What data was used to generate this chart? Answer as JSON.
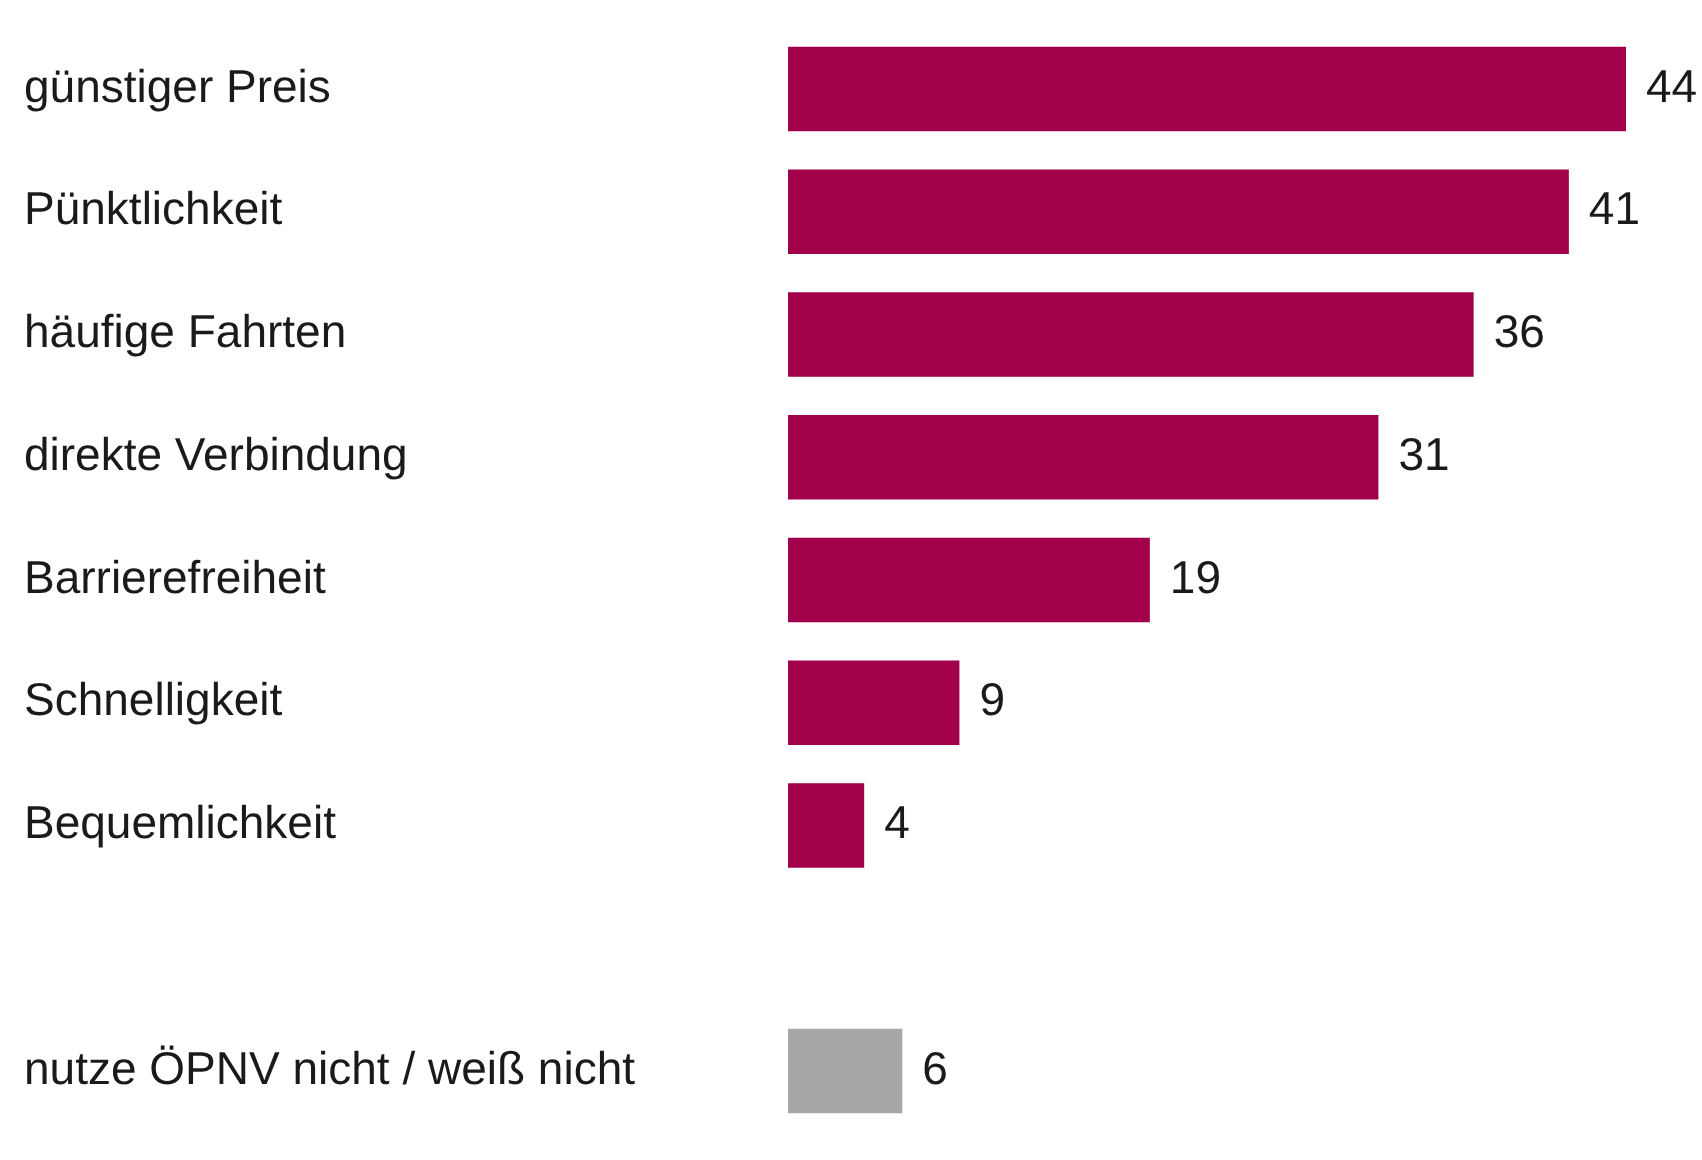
{
  "chart_data": {
    "type": "bar",
    "orientation": "horizontal",
    "categories": [
      "günstiger Preis",
      "Pünktlichkeit",
      "häufige Fahrten",
      "direkte Verbindung",
      "Barrierefreiheit",
      "Schnelligkeit",
      "Bequemlichkeit",
      null,
      "nutze ÖPNV nicht / weiß nicht"
    ],
    "values": [
      44,
      41,
      36,
      31,
      19,
      9,
      4,
      null,
      6
    ],
    "colors": [
      "#a3004c",
      "#a3004c",
      "#a3004c",
      "#a3004c",
      "#a3004c",
      "#a3004c",
      "#a3004c",
      null,
      "#a6a7a9"
    ],
    "data_labels": true,
    "tick_labels": "y"
  }
}
